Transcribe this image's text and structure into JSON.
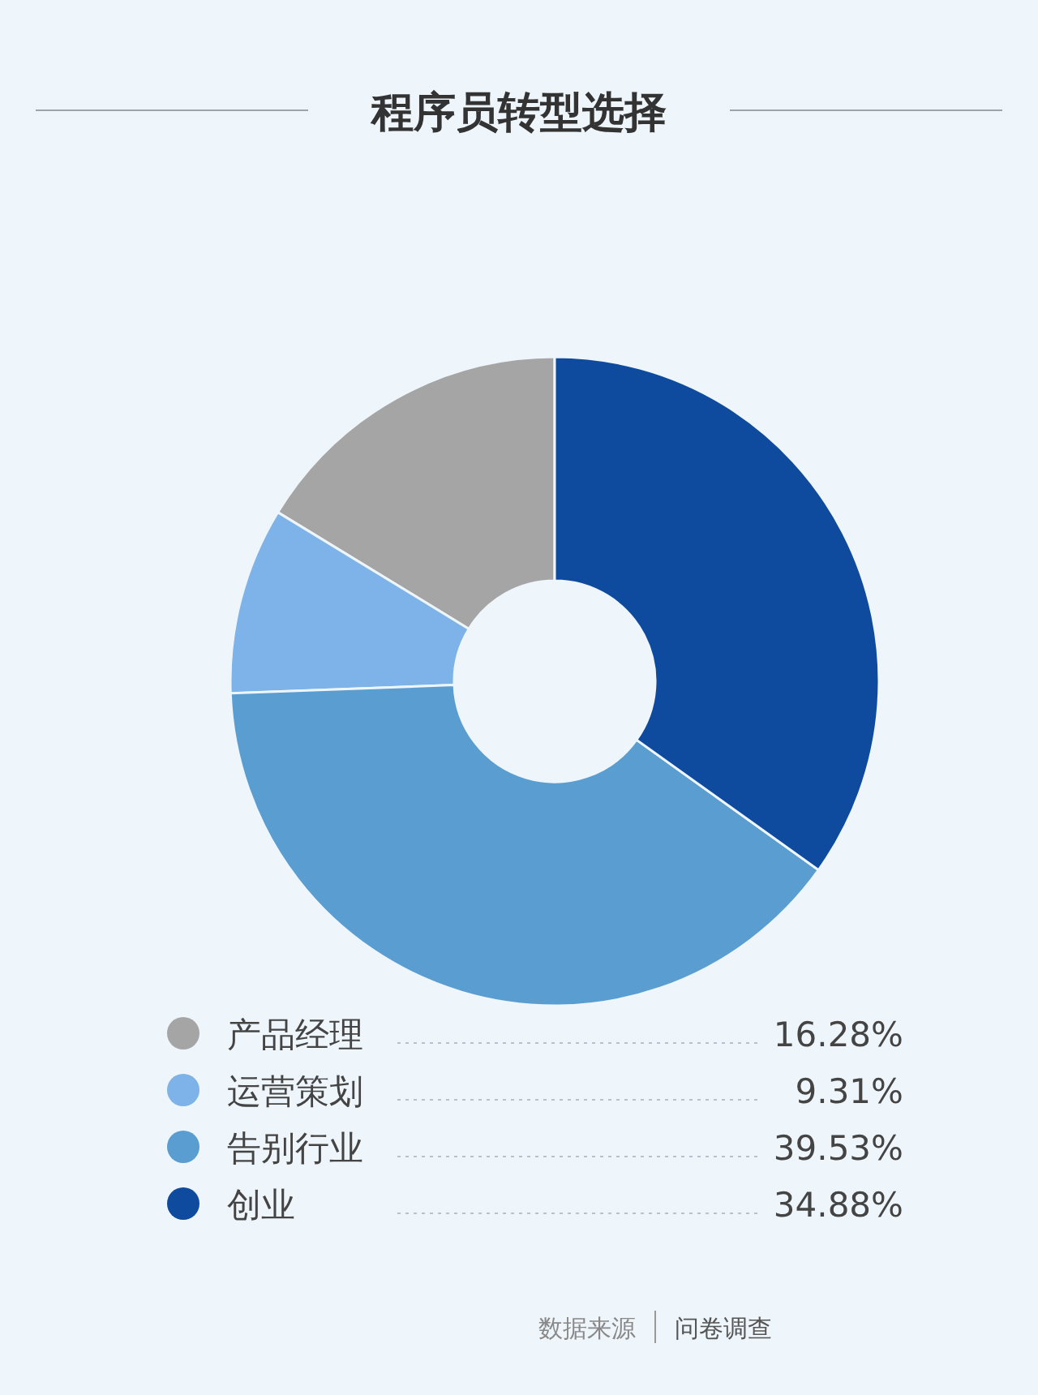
{
  "chart_data": {
    "type": "donut",
    "title": "程序员转型选择",
    "categories": [
      "产品经理",
      "运营策划",
      "告别行业",
      "创业"
    ],
    "values": [
      16.28,
      9.31,
      39.53,
      34.88
    ],
    "value_labels": [
      "16.28%",
      "9.31%",
      "39.53%",
      "34.88%"
    ],
    "colors": [
      "#a5a5a5",
      "#7db3e8",
      "#5a9dd1",
      "#0e4b9e"
    ],
    "legend": "bottom",
    "annotations": [
      "数据来源",
      "问卷调查"
    ]
  }
}
